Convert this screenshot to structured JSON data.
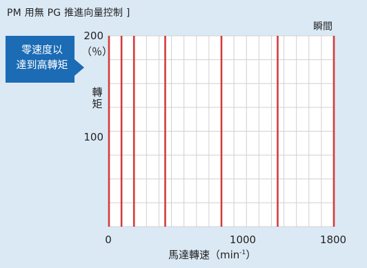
{
  "title": "PM 用無 PG 推進向量控制 ]",
  "callout": {
    "line1": "零速度以",
    "line2": "達到高轉矩"
  },
  "chart_data": {
    "type": "line",
    "annotation": "瞬間",
    "ylabel": "轉\n矩",
    "yunit": "（％）",
    "xlabel": "馬達轉速（min",
    "xlabel_sup": "-1",
    "xlabel_end": "）",
    "xlim": [
      0,
      1800
    ],
    "ylim": [
      0,
      200
    ],
    "yticks": [
      {
        "value": 200,
        "label": "200"
      },
      {
        "value": 100,
        "label": "100"
      }
    ],
    "xticks": [
      {
        "value": 0,
        "label": "0"
      },
      {
        "value": 1000,
        "label": "1000"
      },
      {
        "value": 1800,
        "label": "1800"
      }
    ],
    "grid": true,
    "color": "#d33a3a",
    "series": [
      {
        "x": [
          0,
          0
        ],
        "y": [
          0,
          200
        ]
      },
      {
        "x": [
          100,
          100
        ],
        "y": [
          0,
          200
        ]
      },
      {
        "x": [
          200,
          200
        ],
        "y": [
          0,
          200
        ]
      },
      {
        "x": [
          450,
          450
        ],
        "y": [
          0,
          200
        ]
      },
      {
        "x": [
          900,
          900
        ],
        "y": [
          0,
          200
        ]
      },
      {
        "x": [
          1350,
          1350
        ],
        "y": [
          0,
          200
        ]
      },
      {
        "x": [
          1800,
          1800
        ],
        "y": [
          0,
          200
        ]
      }
    ]
  }
}
